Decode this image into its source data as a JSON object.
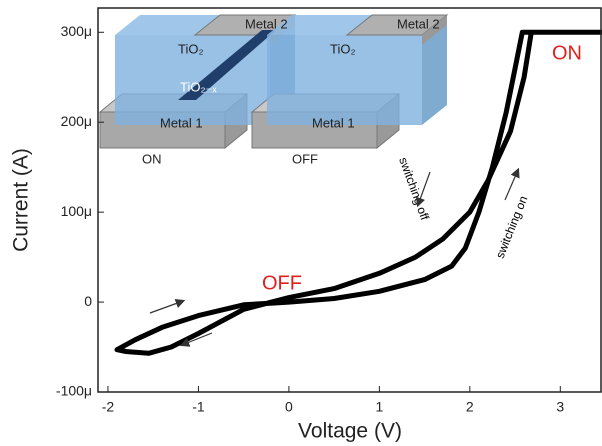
{
  "chart_data": {
    "type": "line",
    "x_label": "Voltage (V)",
    "y_label": "Current (A)",
    "xlim": [
      -2.11,
      3.45
    ],
    "ylim": [
      -0.0001,
      0.000327
    ],
    "xticks": [
      -2,
      -1,
      0,
      1,
      2,
      3
    ],
    "yticks": [
      {
        "value": -0.0001,
        "label": "-100μ"
      },
      0,
      {
        "value": 0.0001,
        "label": "100μ"
      },
      {
        "value": 0.0002,
        "label": "200μ"
      },
      {
        "value": 0.0003,
        "label": "300μ"
      }
    ],
    "color": "#000000",
    "x": [
      0,
      0.5,
      1,
      1.5,
      1.8,
      1.95,
      2.1,
      2.25,
      2.4,
      2.5,
      2.58,
      3.45,
      2.68,
      2.6,
      2.45,
      2.2,
      2,
      1.7,
      1.4,
      1,
      0.5,
      0,
      -0.5,
      -1,
      -1.3,
      -1.55,
      -1.8,
      -1.9,
      -1.7,
      -1.4,
      -1,
      -0.5,
      0
    ],
    "values": [
      0,
      4e-06,
      1.2e-05,
      2.5e-05,
      4e-05,
      6e-05,
      0.0001,
      0.00015,
      0.00021,
      0.00026,
      0.0003,
      0.0003,
      0.0003,
      0.00025,
      0.00019,
      0.000135,
      0.0001,
      7e-05,
      5e-05,
      3.2e-05,
      1.5e-05,
      5e-06,
      -8e-06,
      -3.5e-05,
      -5e-05,
      -5.7e-05,
      -5.5e-05,
      -5.3e-05,
      -4.2e-05,
      -2.8e-05,
      -1.5e-05,
      -3e-06,
      0
    ],
    "annotations": [
      "ON",
      "OFF",
      "switching off",
      "switching on"
    ],
    "inset": {
      "labels": [
        "Metal 2",
        "TiO₂",
        "TiO₂₋ₓ",
        "Metal 1",
        "ON",
        "Metal 2",
        "TiO₂",
        "Metal 1",
        "OFF"
      ]
    }
  }
}
